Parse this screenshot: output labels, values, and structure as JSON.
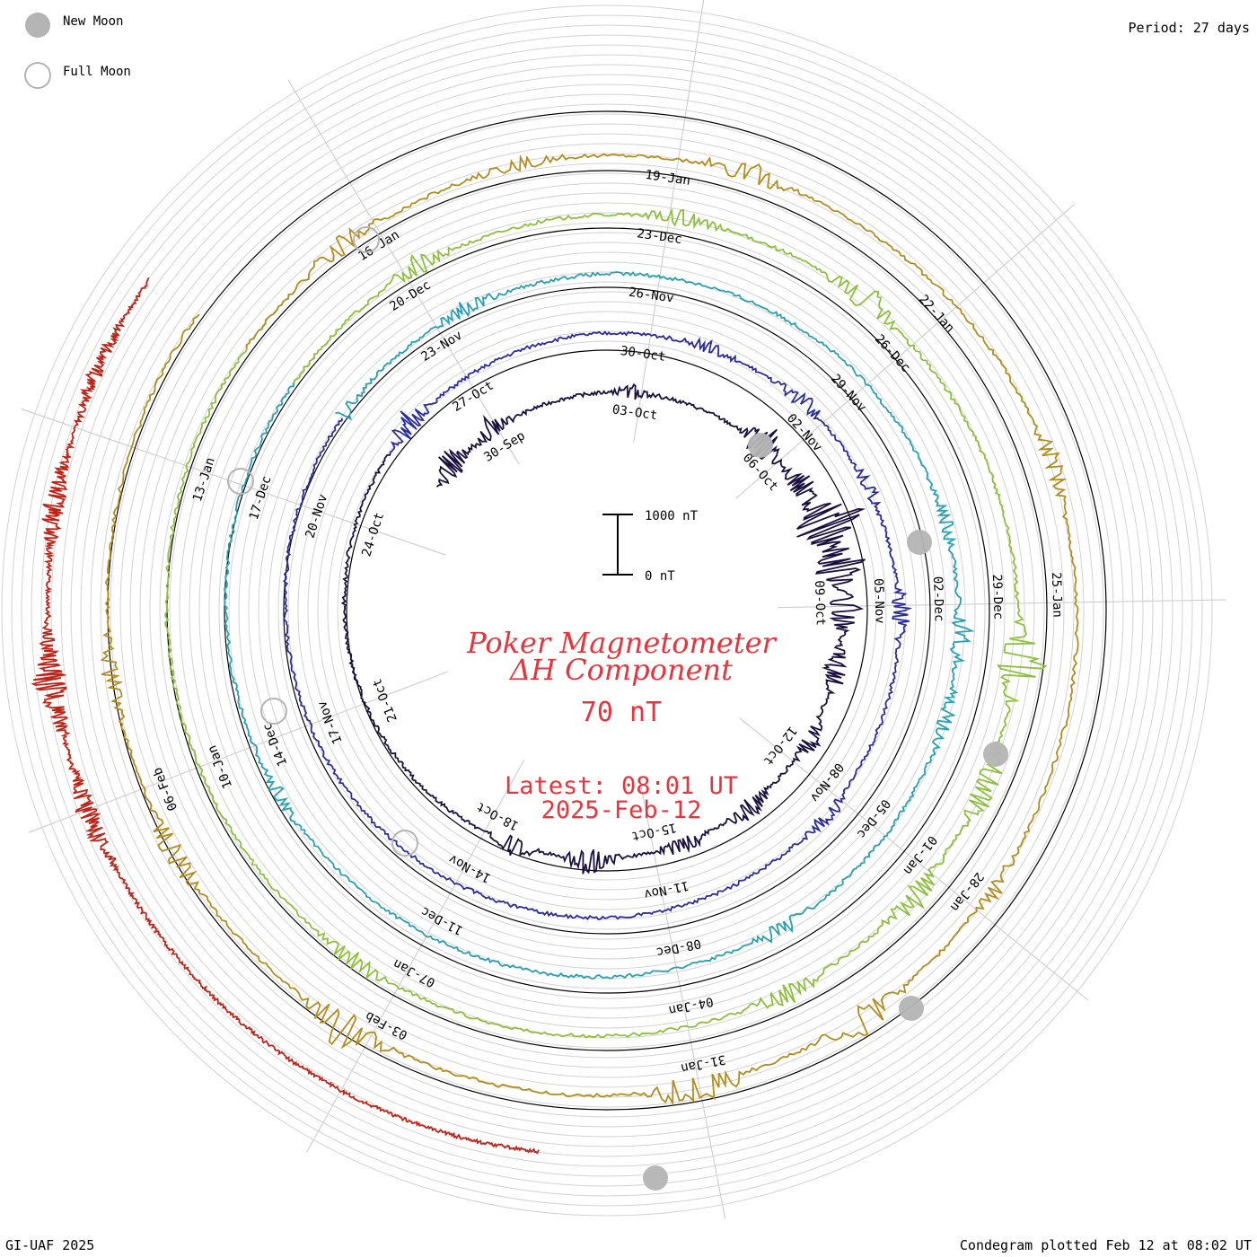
{
  "legend": {
    "new_moon_label": "New Moon",
    "full_moon_label": "Full Moon",
    "moon_color": "#b4b4b4"
  },
  "header": {
    "period": "Period: 27 days"
  },
  "footer": {
    "credit": "GI-UAF 2025",
    "plotted": "Condegram plotted Feb 12 at 08:02 UT"
  },
  "title": {
    "line1": "Poker Magnetometer",
    "line2": "ΔH Component",
    "value": "70 nT",
    "latest_line1": "Latest: 08:01 UT",
    "latest_line2": "2025-Feb-12",
    "color": "#e8343c"
  },
  "scale": {
    "top_label": "1000 nT",
    "bottom_label": "0 nT"
  },
  "chart_data": {
    "type": "line",
    "title": "Poker Magnetometer ΔH Component",
    "period_days": 27,
    "scale_nT": [
      0,
      1000
    ],
    "series": [
      {
        "color": "#1a1040",
        "ticks": [
          "30-Sep",
          "03-Oct",
          "06-Oct",
          "09-Oct",
          "12-Oct",
          "15-Oct",
          "18-Oct",
          "21-Oct",
          "24-Oct"
        ],
        "disturbances": [
          {
            "at": 0.02,
            "amp": 90
          },
          {
            "at": 0.06,
            "amp": 70
          },
          {
            "at": 0.17,
            "amp": 40
          },
          {
            "at": 0.27,
            "amp": 110
          },
          {
            "at": 0.31,
            "amp": 90
          },
          {
            "at": 0.34,
            "amp": 220
          },
          {
            "at": 0.37,
            "amp": 160
          },
          {
            "at": 0.4,
            "amp": 110
          },
          {
            "at": 0.44,
            "amp": 80
          },
          {
            "at": 0.49,
            "amp": 60
          },
          {
            "at": 0.55,
            "amp": 70
          },
          {
            "at": 0.6,
            "amp": 60
          },
          {
            "at": 0.66,
            "amp": 90
          },
          {
            "at": 0.71,
            "amp": 60
          }
        ]
      },
      {
        "color": "#2a2c9c",
        "ticks": [
          "27-Oct",
          "30-Oct",
          "02-Nov",
          "05-Nov",
          "08-Nov",
          "11-Nov",
          "14-Nov",
          "17-Nov",
          "20-Nov"
        ],
        "disturbances": [
          {
            "at": 0.02,
            "amp": 80
          },
          {
            "at": 0.21,
            "amp": 40
          },
          {
            "at": 0.27,
            "amp": 50
          },
          {
            "at": 0.33,
            "amp": 40
          },
          {
            "at": 0.4,
            "amp": 60
          },
          {
            "at": 0.52,
            "amp": 50
          }
        ]
      },
      {
        "color": "#28a0b4",
        "ticks": [
          "23-Nov",
          "26-Nov",
          "29-Nov",
          "02-Dec",
          "05-Dec",
          "08-Dec",
          "11-Dec",
          "14-Dec",
          "17-Dec"
        ],
        "disturbances": [
          {
            "at": 0.0,
            "amp": 60
          },
          {
            "at": 0.08,
            "amp": 50
          },
          {
            "at": 0.36,
            "amp": 40
          },
          {
            "at": 0.41,
            "amp": 60
          },
          {
            "at": 0.45,
            "amp": 50
          },
          {
            "at": 0.57,
            "amp": 50
          },
          {
            "at": 0.82,
            "amp": 40
          }
        ]
      },
      {
        "color": "#8cc03c",
        "ticks": [
          "20-Dec",
          "23-Dec",
          "26-Dec",
          "29-Dec",
          "01-Jan",
          "04-Jan",
          "07-Jan",
          "10-Jan",
          "13-Jan"
        ],
        "disturbances": [
          {
            "at": 0.07,
            "amp": 60
          },
          {
            "at": 0.18,
            "amp": 50
          },
          {
            "at": 0.26,
            "amp": 90
          },
          {
            "at": 0.42,
            "amp": 150
          },
          {
            "at": 0.47,
            "amp": 90
          },
          {
            "at": 0.52,
            "amp": 80
          },
          {
            "at": 0.58,
            "amp": 60
          },
          {
            "at": 0.75,
            "amp": 60
          }
        ]
      },
      {
        "color": "#b48c1c",
        "ticks": [
          "16-Jan",
          "19-Jan",
          "22-Jan",
          "25-Jan",
          "28-Jan",
          "31-Jan",
          "03-Feb",
          "06-Feb"
        ],
        "disturbances": [
          {
            "at": 0.05,
            "amp": 60
          },
          {
            "at": 0.12,
            "amp": 40
          },
          {
            "at": 0.2,
            "amp": 80
          },
          {
            "at": 0.35,
            "amp": 60
          },
          {
            "at": 0.5,
            "amp": 40
          },
          {
            "at": 0.56,
            "amp": 90
          },
          {
            "at": 0.62,
            "amp": 110
          },
          {
            "at": 0.74,
            "amp": 110
          },
          {
            "at": 0.82,
            "amp": 70
          },
          {
            "at": 0.88,
            "amp": 50
          }
        ]
      },
      {
        "color": "#c02418",
        "ticks": [],
        "disturbances": [
          {
            "at": 0.84,
            "amp": 60
          },
          {
            "at": 0.88,
            "amp": 90
          },
          {
            "at": 0.93,
            "amp": 60
          },
          {
            "at": 0.97,
            "amp": 40
          }
        ]
      }
    ]
  }
}
